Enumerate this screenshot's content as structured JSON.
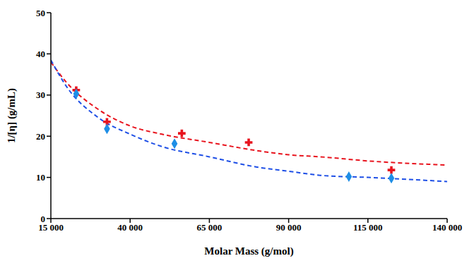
{
  "chart_data": {
    "type": "scatter",
    "x_label": "Molar Mass (g/mol)",
    "y_label": "1/[η] (g/mL)",
    "xlim": [
      15000,
      140000
    ],
    "xticks": [
      {
        "value": 15000,
        "label": "15 000"
      },
      {
        "value": 40000,
        "label": "40 000"
      },
      {
        "value": 65000,
        "label": "65 000"
      },
      {
        "value": 90000,
        "label": "90 000"
      },
      {
        "value": 115000,
        "label": "115 000"
      },
      {
        "value": 140000,
        "label": "140 000"
      }
    ],
    "ylim": [
      0,
      50
    ],
    "yticks": [
      0,
      10,
      20,
      30,
      40,
      50
    ],
    "grid": false,
    "series": [
      {
        "type": "scatter",
        "marker": "cross",
        "color": "#e8141e",
        "x": [
          23000,
          32700,
          56300,
          77400,
          122400
        ],
        "values": [
          31.2,
          23.5,
          20.7,
          18.5,
          11.8
        ]
      },
      {
        "type": "scatter",
        "marker": "diamond",
        "color": "#1e8ee6",
        "x": [
          23000,
          32700,
          54000,
          109000,
          122400
        ],
        "values": [
          30.3,
          21.8,
          18.2,
          10.2,
          9.8
        ]
      },
      {
        "type": "line",
        "line_style": "dashed",
        "color": "#e8141e",
        "x": [
          15000,
          20000,
          30000,
          40000,
          50000,
          65000,
          80000,
          90000,
          100000,
          115000,
          140000
        ],
        "values": [
          38,
          33,
          26.5,
          22.5,
          20.5,
          18.5,
          16.5,
          15.5,
          15,
          14,
          13
        ]
      },
      {
        "type": "line",
        "line_style": "dashed",
        "color": "#1e4fe6",
        "x": [
          15000,
          20000,
          30000,
          40000,
          50000,
          65000,
          80000,
          90000,
          100000,
          115000,
          140000
        ],
        "values": [
          38.5,
          32,
          24.5,
          20.5,
          17.5,
          15,
          12.5,
          11.5,
          10.5,
          10,
          9
        ]
      }
    ]
  }
}
